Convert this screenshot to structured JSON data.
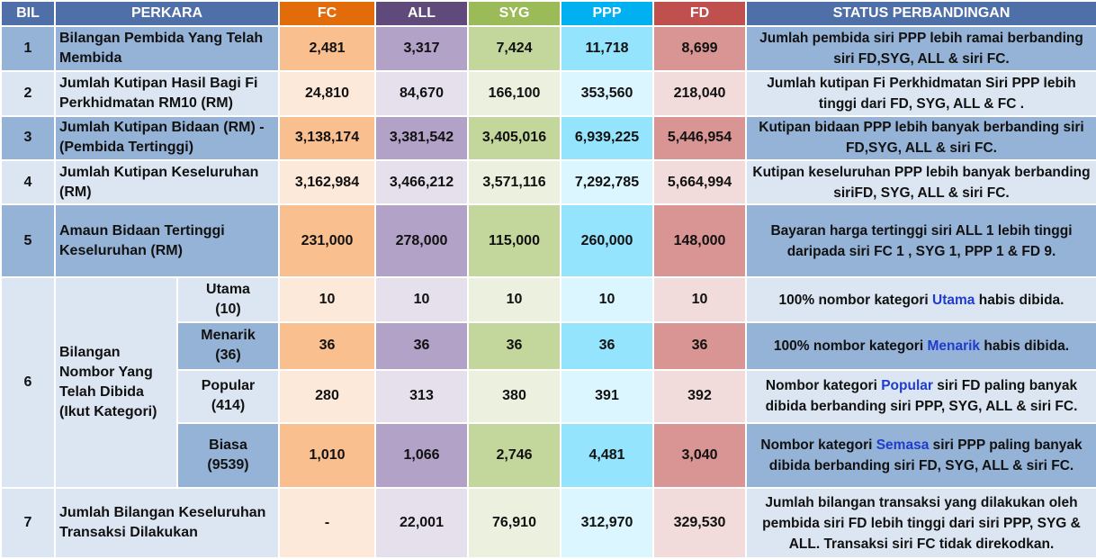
{
  "header": {
    "bil": "BIL",
    "perkara": "PERKARA",
    "fc": "FC",
    "all": "ALL",
    "syg": "SYG",
    "ppp": "PPP",
    "fd": "FD",
    "status": "STATUS PERBANDINGAN"
  },
  "colors": {
    "fc": "#e36c0a",
    "all": "#604a7b",
    "syg": "#9bbb59",
    "ppp": "#00b0f0",
    "fd": "#c0504d",
    "header": "#4f6fa9"
  },
  "rows": [
    {
      "bil": "1",
      "perkara": "Bilangan Pembida Yang Telah Membida",
      "fc": "2,481",
      "all": "3,317",
      "syg": "7,424",
      "ppp": "11,718",
      "fd": "8,699",
      "status": "Jumlah pembida siri PPP lebih ramai berbanding siri FD,SYG, ALL  & siri FC."
    },
    {
      "bil": "2",
      "perkara": "Jumlah Kutipan Hasil Bagi Fi Perkhidmatan RM10 (RM)",
      "fc": "24,810",
      "all": "84,670",
      "syg": "166,100",
      "ppp": "353,560",
      "fd": "218,040",
      "status": "Jumlah kutipan Fi Perkhidmatan Siri PPP lebih tinggi dari FD, SYG, ALL & FC ."
    },
    {
      "bil": "3",
      "perkara": "Jumlah Kutipan Bidaan (RM) - (Pembida Tertinggi)",
      "fc": "3,138,174",
      "all": "3,381,542",
      "syg": "3,405,016",
      "ppp": "6,939,225",
      "fd": "5,446,954",
      "status": "Kutipan bidaan PPP lebih banyak berbanding siri FD,SYG, ALL  & siri FC."
    },
    {
      "bil": "4",
      "perkara": "Jumlah Kutipan Keseluruhan (RM)",
      "fc": "3,162,984",
      "all": "3,466,212",
      "syg": "3,571,116",
      "ppp": "7,292,785",
      "fd": "5,664,994",
      "status": "Kutipan keseluruhan PPP lebih banyak berbanding siriFD, SYG, ALL  & siri FC."
    },
    {
      "bil": "5",
      "perkara": "Amaun Bidaan Tertinggi Keseluruhan (RM)",
      "fc": "231,000",
      "all": "278,000",
      "syg": "115,000",
      "ppp": "260,000",
      "fd": "148,000",
      "status": "Bayaran harga tertinggi siri ALL 1 lebih tinggi daripada siri FC 1 , SYG 1, PPP 1 & FD 9."
    }
  ],
  "row6": {
    "bil": "6",
    "perkara": "Bilangan Nombor Yang Telah Dibida (Ikut Kategori)",
    "subs": [
      {
        "cat": "Utama",
        "count": "(10)",
        "fc": "10",
        "all": "10",
        "syg": "10",
        "ppp": "10",
        "fd": "10",
        "status_pre": "100% nombor kategori ",
        "status_hl": "Utama",
        "status_post": " habis dibida."
      },
      {
        "cat": "Menarik",
        "count": "(36)",
        "fc": "36",
        "all": "36",
        "syg": "36",
        "ppp": "36",
        "fd": "36",
        "status_pre": "100% nombor kategori ",
        "status_hl": "Menarik",
        "status_post": " habis dibida."
      },
      {
        "cat": "Popular",
        "count": "(414)",
        "fc": "280",
        "all": "313",
        "syg": "380",
        "ppp": "391",
        "fd": "392",
        "status_pre": "Nombor kategori ",
        "status_hl": "Popular",
        "status_post": " siri FD paling banyak dibida berbanding siri PPP, SYG, ALL  & siri FC."
      },
      {
        "cat": "Biasa",
        "count": "(9539)",
        "fc": "1,010",
        "all": "1,066",
        "syg": "2,746",
        "ppp": "4,481",
        "fd": "3,040",
        "status_pre": "Nombor kategori ",
        "status_hl": "Semasa",
        "status_post": " siri PPP paling banyak dibida berbanding siri FD, SYG, ALL  & siri FC."
      }
    ]
  },
  "row7": {
    "bil": "7",
    "perkara": "Jumlah Bilangan Keseluruhan Transaksi Dilakukan",
    "fc": "-",
    "all": "22,001",
    "syg": "76,910",
    "ppp": "312,970",
    "fd": "329,530",
    "status": "Jumlah bilangan transaksi yang dilakukan oleh pembida siri FD lebih tinggi dari siri PPP, SYG & ALL. Transaksi siri FC tidak direkodkan."
  }
}
